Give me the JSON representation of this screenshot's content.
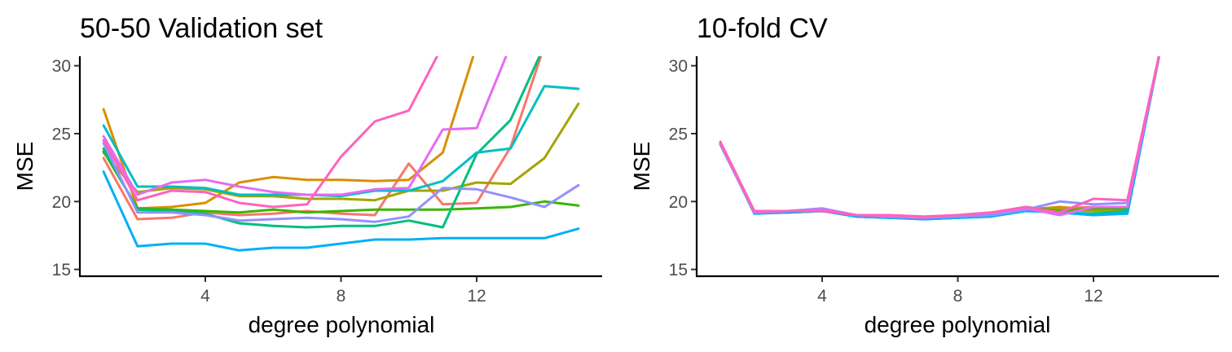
{
  "chart_data": [
    {
      "type": "line",
      "title": "50-50 Validation set",
      "xlabel": "degree polynomial",
      "ylabel": "MSE",
      "xlim": [
        0.3,
        15.7
      ],
      "ylim": [
        14.5,
        30.7
      ],
      "xticks": [
        4,
        8,
        12
      ],
      "yticks": [
        15,
        20,
        25,
        30
      ],
      "grid": false,
      "legend": "none",
      "x": [
        1,
        2,
        3,
        4,
        5,
        6,
        7,
        8,
        9,
        10,
        11,
        12,
        13,
        14,
        15
      ],
      "series": [
        {
          "color": "#F8766D",
          "values": [
            23.2,
            18.7,
            18.8,
            19.2,
            19.0,
            19.1,
            19.3,
            19.1,
            19.0,
            22.8,
            19.8,
            19.9,
            24.0,
            31.5,
            31.5
          ]
        },
        {
          "color": "#D89000",
          "values": [
            26.8,
            19.5,
            19.6,
            19.9,
            21.4,
            21.8,
            21.6,
            21.6,
            21.5,
            21.6,
            23.6,
            31.5,
            31.5,
            31.5,
            31.5
          ]
        },
        {
          "color": "#A3A500",
          "values": [
            23.6,
            20.7,
            21.0,
            20.9,
            20.4,
            20.4,
            20.2,
            20.2,
            20.1,
            20.8,
            20.8,
            21.4,
            21.3,
            23.2,
            27.2
          ]
        },
        {
          "color": "#39B600",
          "values": [
            23.7,
            19.5,
            19.4,
            19.3,
            19.2,
            19.4,
            19.2,
            19.3,
            19.4,
            19.4,
            19.4,
            19.5,
            19.6,
            20.0,
            19.7
          ]
        },
        {
          "color": "#00BF7D",
          "values": [
            23.9,
            19.4,
            19.3,
            19.1,
            18.4,
            18.2,
            18.1,
            18.2,
            18.2,
            18.6,
            18.1,
            23.5,
            26.0,
            31.5,
            31.5
          ]
        },
        {
          "color": "#00BFC4",
          "values": [
            25.6,
            21.1,
            21.1,
            21.0,
            20.5,
            20.5,
            20.5,
            20.4,
            20.8,
            20.8,
            21.5,
            23.6,
            23.9,
            28.5,
            28.3
          ]
        },
        {
          "color": "#00B0F6",
          "values": [
            22.2,
            16.7,
            16.9,
            16.9,
            16.4,
            16.6,
            16.6,
            16.9,
            17.2,
            17.2,
            17.3,
            17.3,
            17.3,
            17.3,
            18.0
          ]
        },
        {
          "color": "#9590FF",
          "values": [
            24.3,
            19.2,
            19.2,
            19.0,
            18.6,
            18.7,
            18.8,
            18.7,
            18.5,
            18.9,
            21.0,
            20.9,
            20.3,
            19.6,
            21.2
          ]
        },
        {
          "color": "#E76BF3",
          "values": [
            24.8,
            20.5,
            21.4,
            21.6,
            21.1,
            20.7,
            20.5,
            20.5,
            20.9,
            21.0,
            25.3,
            25.4,
            31.5,
            31.5,
            31.5
          ]
        },
        {
          "color": "#FF62BC",
          "values": [
            24.5,
            20.1,
            20.8,
            20.7,
            19.9,
            19.6,
            19.8,
            23.3,
            25.9,
            26.7,
            31.5,
            31.5,
            31.5,
            31.5,
            31.5
          ]
        }
      ]
    },
    {
      "type": "line",
      "title": "10-fold CV",
      "xlabel": "degree polynomial",
      "ylabel": "MSE",
      "xlim": [
        0.3,
        15.7
      ],
      "ylim": [
        14.5,
        30.7
      ],
      "xticks": [
        4,
        8,
        12
      ],
      "yticks": [
        15,
        20,
        25,
        30
      ],
      "grid": false,
      "legend": "none",
      "x": [
        1,
        2,
        3,
        4,
        5,
        6,
        7,
        8,
        9,
        10,
        11,
        12,
        13,
        14
      ],
      "series": [
        {
          "color": "#F8766D",
          "values": [
            24.3,
            19.2,
            19.3,
            19.4,
            18.9,
            18.8,
            18.8,
            18.9,
            19.1,
            19.5,
            19.5,
            19.6,
            19.5,
            31.5
          ]
        },
        {
          "color": "#D89000",
          "values": [
            24.2,
            19.2,
            19.2,
            19.3,
            19.0,
            18.9,
            18.8,
            18.9,
            19.0,
            19.4,
            19.6,
            19.4,
            19.5,
            31.5
          ]
        },
        {
          "color": "#A3A500",
          "values": [
            24.3,
            19.2,
            19.3,
            19.3,
            19.0,
            18.9,
            18.8,
            18.9,
            19.0,
            19.5,
            19.4,
            19.3,
            19.4,
            31.5
          ]
        },
        {
          "color": "#39B600",
          "values": [
            24.2,
            19.2,
            19.3,
            19.4,
            19.0,
            18.9,
            18.8,
            19.0,
            19.1,
            19.6,
            19.3,
            19.5,
            19.5,
            31.5
          ]
        },
        {
          "color": "#00BF7D",
          "values": [
            24.3,
            19.2,
            19.2,
            19.3,
            18.9,
            18.8,
            18.7,
            18.8,
            19.0,
            19.4,
            19.2,
            19.1,
            19.3,
            31.5
          ]
        },
        {
          "color": "#00BFC4",
          "values": [
            24.2,
            19.2,
            19.2,
            19.3,
            19.0,
            18.9,
            18.7,
            18.8,
            18.9,
            19.4,
            19.2,
            19.0,
            19.2,
            31.5
          ]
        },
        {
          "color": "#00B0F6",
          "values": [
            24.3,
            19.1,
            19.2,
            19.3,
            18.9,
            18.8,
            18.7,
            18.8,
            18.9,
            19.3,
            19.2,
            19.0,
            19.1,
            31.5
          ]
        },
        {
          "color": "#9590FF",
          "values": [
            24.2,
            19.2,
            19.3,
            19.5,
            19.0,
            18.9,
            18.8,
            18.9,
            19.0,
            19.4,
            20.0,
            19.8,
            19.9,
            31.5
          ]
        },
        {
          "color": "#E76BF3",
          "values": [
            24.3,
            19.2,
            19.3,
            19.4,
            19.0,
            18.9,
            18.8,
            19.0,
            19.2,
            19.5,
            19.0,
            19.6,
            19.6,
            31.5
          ]
        },
        {
          "color": "#FF62BC",
          "values": [
            24.4,
            19.3,
            19.3,
            19.3,
            19.0,
            19.0,
            18.9,
            19.0,
            19.2,
            19.6,
            19.2,
            20.2,
            20.1,
            31.5
          ]
        }
      ]
    }
  ]
}
